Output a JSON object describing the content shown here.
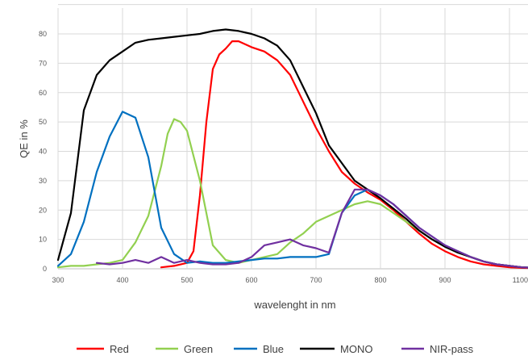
{
  "chart_data": {
    "type": "line",
    "title": "",
    "xlabel": "wavelenght in nm",
    "ylabel": "QE in %",
    "xlim": [
      300,
      1100
    ],
    "ylim": [
      0,
      90
    ],
    "x_ticks": [
      300,
      400,
      500,
      600,
      700,
      800,
      900,
      1100
    ],
    "x_tick_labels": [
      "300",
      "400",
      "500",
      "600",
      "700",
      "800",
      "900",
      "1100"
    ],
    "y_ticks": [
      0,
      10,
      20,
      30,
      40,
      50,
      60,
      70,
      80
    ],
    "y_tick_labels": [
      "0",
      "10",
      "20",
      "30",
      "40",
      "50",
      "60",
      "70",
      "80"
    ],
    "grid": true,
    "legend_position": "bottom",
    "series": [
      {
        "name": "Red",
        "color": "#ff0000",
        "x": [
          460,
          480,
          500,
          510,
          520,
          530,
          540,
          550,
          560,
          570,
          580,
          590,
          600,
          620,
          640,
          660,
          680,
          700,
          720,
          740,
          760,
          780,
          800,
          820,
          840,
          860,
          880,
          900,
          920,
          940,
          960,
          980,
          1000,
          1020,
          1040
        ],
        "y": [
          0.5,
          1,
          2,
          6,
          25,
          50,
          68,
          73,
          75,
          77.5,
          77.5,
          76.5,
          75.5,
          74,
          71,
          66,
          57,
          48,
          40,
          33,
          29,
          26,
          23.5,
          20,
          16,
          12,
          8.5,
          6,
          4,
          2.5,
          1.5,
          1,
          0.5,
          0.3,
          0.2
        ]
      },
      {
        "name": "Green",
        "color": "#92d050",
        "x": [
          300,
          320,
          340,
          360,
          380,
          400,
          420,
          440,
          460,
          470,
          480,
          490,
          500,
          520,
          540,
          560,
          580,
          600,
          620,
          640,
          660,
          680,
          700,
          720,
          740,
          760,
          780,
          800,
          820,
          840,
          860,
          880,
          900,
          920,
          940,
          960,
          980,
          1000,
          1020,
          1040
        ],
        "y": [
          0.5,
          1,
          1,
          1.5,
          2,
          3,
          9,
          18,
          35,
          46,
          51,
          50,
          47,
          30,
          8,
          3,
          2,
          3,
          4,
          5,
          9,
          12,
          16,
          18,
          20,
          22,
          23,
          22,
          19,
          16,
          13,
          10,
          7.5,
          5.5,
          4,
          2.5,
          1.5,
          1,
          0.5,
          0.3
        ]
      },
      {
        "name": "Blue",
        "color": "#0070c0",
        "x": [
          300,
          320,
          340,
          360,
          380,
          400,
          420,
          440,
          460,
          480,
          500,
          520,
          540,
          560,
          580,
          600,
          620,
          640,
          660,
          680,
          700,
          720,
          740,
          760,
          780,
          800,
          820,
          840,
          860,
          880,
          900,
          920,
          940,
          960,
          980,
          1000,
          1020,
          1040
        ],
        "y": [
          1,
          5,
          16,
          33,
          45,
          53.5,
          51.5,
          38,
          14,
          5,
          2,
          2.5,
          2,
          2,
          2.5,
          3,
          3.5,
          3.5,
          4,
          4,
          4,
          5,
          19,
          25,
          27,
          25,
          22,
          18,
          14,
          11,
          8,
          6,
          4,
          2.5,
          1.5,
          1,
          0.5,
          0.3
        ]
      },
      {
        "name": "MONO",
        "color": "#000000",
        "x": [
          300,
          320,
          340,
          360,
          380,
          400,
          420,
          440,
          460,
          480,
          500,
          520,
          540,
          560,
          580,
          600,
          620,
          640,
          660,
          680,
          700,
          720,
          740,
          760,
          780,
          800,
          820,
          840,
          860,
          880,
          900,
          920,
          940,
          960,
          980,
          1000,
          1020,
          1040
        ],
        "y": [
          3,
          19,
          54,
          66,
          71,
          74,
          77,
          78,
          78.5,
          79,
          79.5,
          80,
          81,
          81.5,
          81,
          80,
          78.5,
          76,
          71,
          62,
          53,
          42,
          36,
          30,
          27,
          24,
          20.5,
          17,
          13,
          10,
          7.5,
          5.5,
          4,
          2.5,
          1.5,
          1,
          0.5,
          0.3
        ]
      },
      {
        "name": "NIR-pass",
        "color": "#7030a0",
        "x": [
          360,
          380,
          400,
          420,
          440,
          460,
          480,
          500,
          520,
          540,
          560,
          580,
          600,
          620,
          640,
          660,
          680,
          700,
          720,
          740,
          760,
          780,
          800,
          820,
          840,
          860,
          880,
          900,
          920,
          940,
          960,
          980,
          1000,
          1020,
          1040
        ],
        "y": [
          2,
          1.5,
          2,
          3,
          2,
          4,
          2,
          3,
          2,
          1.5,
          1.5,
          2,
          4,
          8,
          9,
          10,
          8,
          7,
          5.5,
          19,
          27,
          27,
          25,
          22,
          18,
          14,
          11,
          8,
          6,
          4,
          2.5,
          1.5,
          1,
          0.5,
          0.3
        ]
      }
    ]
  }
}
